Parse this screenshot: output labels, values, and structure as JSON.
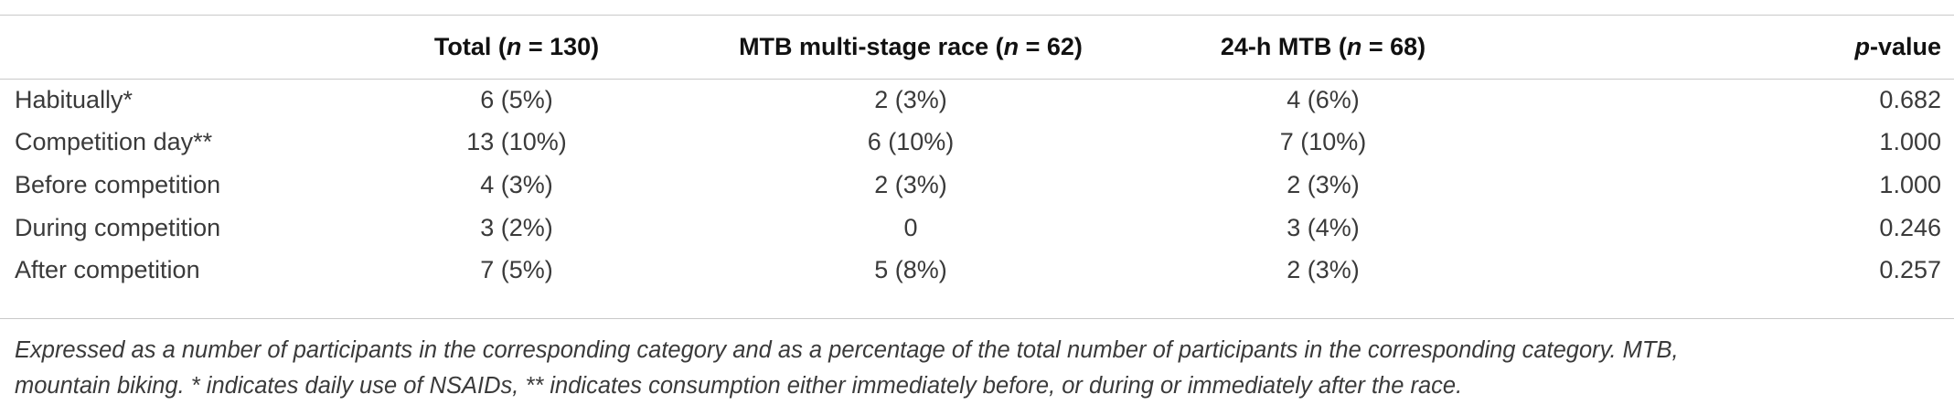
{
  "table": {
    "headers": [
      {
        "pre": "",
        "italic": "",
        "post": ""
      },
      {
        "pre": "Total (",
        "italic": "n",
        "post": " = 130)"
      },
      {
        "pre": "MTB multi-stage race (",
        "italic": "n",
        "post": " = 62)"
      },
      {
        "pre": "24-h MTB (",
        "italic": "n",
        "post": " = 68)"
      },
      {
        "pre": "",
        "italic": "p",
        "post": "-value"
      }
    ],
    "rows": [
      {
        "label": "Habitually*",
        "total": "6 (5%)",
        "mtb": "2 (3%)",
        "h24": "4 (6%)",
        "p": "0.682"
      },
      {
        "label": "Competition day**",
        "total": "13 (10%)",
        "mtb": "6 (10%)",
        "h24": "7 (10%)",
        "p": "1.000"
      },
      {
        "label": "Before competition",
        "total": "4 (3%)",
        "mtb": "2 (3%)",
        "h24": "2 (3%)",
        "p": "1.000"
      },
      {
        "label": "During competition",
        "total": "3 (2%)",
        "mtb": "0",
        "h24": "3 (4%)",
        "p": "0.246"
      },
      {
        "label": "After competition",
        "total": "7 (5%)",
        "mtb": "5 (8%)",
        "h24": "2 (3%)",
        "p": "0.257"
      }
    ]
  },
  "footnote": {
    "line1": "Expressed as a number of participants in the corresponding category and as a percentage of the total number of participants in the corresponding category. MTB,",
    "line2": "mountain biking. * indicates daily use of NSAIDs, ** indicates consumption either immediately before, or during or immediately after the race."
  }
}
